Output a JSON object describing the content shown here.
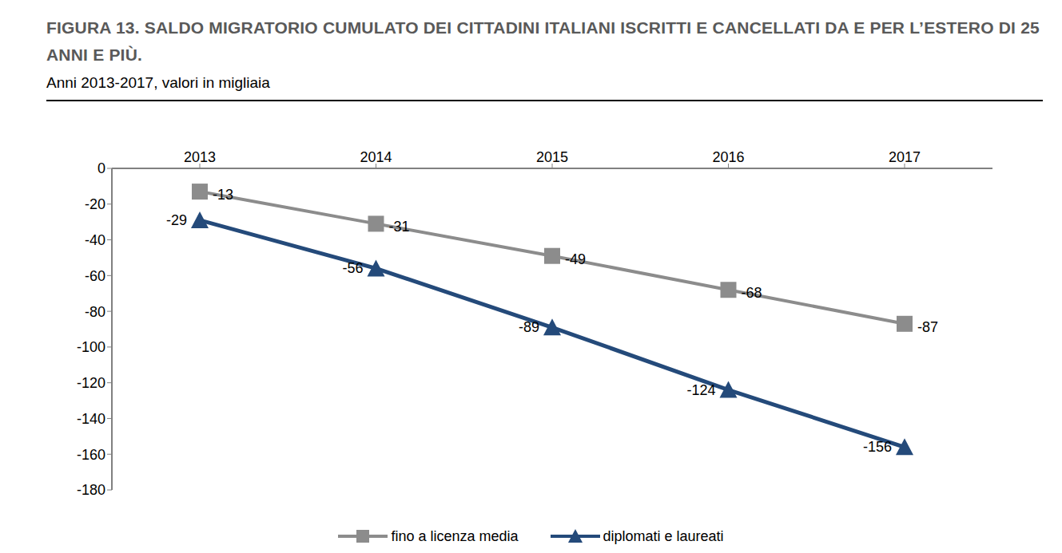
{
  "chart_data": {
    "type": "line",
    "title": "FIGURA 13. SALDO MIGRATORIO CUMULATO DEI CITTADINI ITALIANI ISCRITTI E CANCELLATI DA E PER L’ESTERO DI 25 ANNI E PIÙ.",
    "subtitle": "Anni 2013-2017, valori in migliaia",
    "categories": [
      "2013",
      "2014",
      "2015",
      "2016",
      "2017"
    ],
    "series": [
      {
        "name": "fino a licenza media",
        "color": "#8c8c8c",
        "marker": "square",
        "values": [
          -13,
          -31,
          -49,
          -68,
          -87
        ]
      },
      {
        "name": "diplomati e laureati",
        "color": "#244a7a",
        "marker": "triangle",
        "values": [
          -29,
          -56,
          -89,
          -124,
          -156
        ]
      }
    ],
    "ylim": [
      -180,
      0
    ],
    "yticks": [
      -180,
      -160,
      -140,
      -120,
      -100,
      -80,
      -60,
      -40,
      -20,
      0
    ],
    "grid": false,
    "legend": "bottom",
    "data_labels": true
  }
}
